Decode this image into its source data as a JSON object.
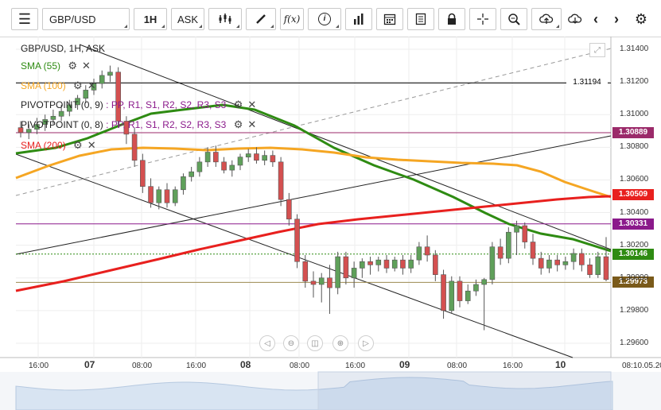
{
  "toolbar": {
    "symbol": "GBP/USD",
    "timeframe": "1H",
    "price_type": "ASK",
    "fx_label": "f(x)"
  },
  "legend": {
    "title": "GBP/USD, 1H, ASK",
    "sma55": "SMA (55)",
    "sma100": "SMA (100)",
    "pivot1_name": "PIVOTPOINT (0, 9)",
    "pivot1_levels": ": PP, R1, S1, R2, S2, R3, S3",
    "pivot2_name": "PIVOTPOINT (0, 8)",
    "pivot2_levels": ": PP, R1, S1, R2, S2, R3, S3",
    "sma200": "SMA (200)"
  },
  "colors": {
    "sma55": "#2e8b12",
    "sma100": "#f5a623",
    "sma200": "#e8201e",
    "pivot": "#8b1a8b",
    "bull": "#5fa05a",
    "bear": "#d45050"
  },
  "price_tags": [
    {
      "label": "1.31194",
      "color": "#000000",
      "price": 1.31194
    },
    {
      "label": "1.30889",
      "color": "#9b2a6a",
      "price": 1.30889
    },
    {
      "label": "1.30509",
      "color": "#e8201e",
      "price": 1.30509
    },
    {
      "label": "1.30331",
      "color": "#8b1a8b",
      "price": 1.30331
    },
    {
      "label": "1.30146",
      "color": "#2e8b12",
      "price": 1.30146
    },
    {
      "label": "1.29973",
      "color": "#7a5a1a",
      "price": 1.29973
    }
  ],
  "chart_data": {
    "type": "candlestick",
    "symbol": "GBP/USD",
    "timeframe": "1H",
    "y_ticks": [
      "1.31400",
      "1.31200",
      "1.31000",
      "1.30800",
      "1.30600",
      "1.30400",
      "1.30200",
      "1.30000",
      "1.29800",
      "1.29600"
    ],
    "ylim": [
      1.295,
      1.315
    ],
    "x_ticks": [
      "16:00",
      "07",
      "08:00",
      "16:00",
      "08",
      "08:00",
      "16:00",
      "09",
      "08:00",
      "16:00",
      "10",
      "08:10.05.2019"
    ],
    "candles": [
      {
        "o": 1.3092,
        "h": 1.3096,
        "l": 1.3086,
        "c": 1.3089
      },
      {
        "o": 1.3089,
        "h": 1.3094,
        "l": 1.3085,
        "c": 1.3091
      },
      {
        "o": 1.3091,
        "h": 1.3098,
        "l": 1.3088,
        "c": 1.3094
      },
      {
        "o": 1.3094,
        "h": 1.31,
        "l": 1.309,
        "c": 1.3097
      },
      {
        "o": 1.3097,
        "h": 1.3103,
        "l": 1.3094,
        "c": 1.3099
      },
      {
        "o": 1.3099,
        "h": 1.3106,
        "l": 1.3096,
        "c": 1.3102
      },
      {
        "o": 1.3102,
        "h": 1.3109,
        "l": 1.3099,
        "c": 1.3106
      },
      {
        "o": 1.3106,
        "h": 1.3112,
        "l": 1.3103,
        "c": 1.311
      },
      {
        "o": 1.311,
        "h": 1.3118,
        "l": 1.3107,
        "c": 1.3115
      },
      {
        "o": 1.3115,
        "h": 1.3122,
        "l": 1.3112,
        "c": 1.3119
      },
      {
        "o": 1.3119,
        "h": 1.3127,
        "l": 1.3116,
        "c": 1.3124
      },
      {
        "o": 1.3124,
        "h": 1.313,
        "l": 1.312,
        "c": 1.3126
      },
      {
        "o": 1.3126,
        "h": 1.3129,
        "l": 1.3092,
        "c": 1.3096
      },
      {
        "o": 1.3096,
        "h": 1.3099,
        "l": 1.3082,
        "c": 1.3088
      },
      {
        "o": 1.3088,
        "h": 1.3092,
        "l": 1.3068,
        "c": 1.3072
      },
      {
        "o": 1.3072,
        "h": 1.3076,
        "l": 1.3052,
        "c": 1.3056
      },
      {
        "o": 1.3056,
        "h": 1.3061,
        "l": 1.3043,
        "c": 1.3046
      },
      {
        "o": 1.3046,
        "h": 1.3056,
        "l": 1.3042,
        "c": 1.3054
      },
      {
        "o": 1.3054,
        "h": 1.3058,
        "l": 1.3043,
        "c": 1.3046
      },
      {
        "o": 1.3046,
        "h": 1.3056,
        "l": 1.3044,
        "c": 1.3054
      },
      {
        "o": 1.3054,
        "h": 1.3064,
        "l": 1.3051,
        "c": 1.3062
      },
      {
        "o": 1.3062,
        "h": 1.3068,
        "l": 1.3059,
        "c": 1.3065
      },
      {
        "o": 1.3065,
        "h": 1.3074,
        "l": 1.3062,
        "c": 1.3071
      },
      {
        "o": 1.3071,
        "h": 1.308,
        "l": 1.3068,
        "c": 1.3077
      },
      {
        "o": 1.3077,
        "h": 1.3081,
        "l": 1.3068,
        "c": 1.3071
      },
      {
        "o": 1.3071,
        "h": 1.3074,
        "l": 1.3064,
        "c": 1.3066
      },
      {
        "o": 1.3066,
        "h": 1.3072,
        "l": 1.3062,
        "c": 1.3069
      },
      {
        "o": 1.3069,
        "h": 1.3076,
        "l": 1.3066,
        "c": 1.3074
      },
      {
        "o": 1.3074,
        "h": 1.3079,
        "l": 1.3071,
        "c": 1.3076
      },
      {
        "o": 1.3076,
        "h": 1.308,
        "l": 1.307,
        "c": 1.3072
      },
      {
        "o": 1.3072,
        "h": 1.3078,
        "l": 1.3069,
        "c": 1.3075
      },
      {
        "o": 1.3075,
        "h": 1.3078,
        "l": 1.3068,
        "c": 1.3071
      },
      {
        "o": 1.3071,
        "h": 1.3074,
        "l": 1.3044,
        "c": 1.3048
      },
      {
        "o": 1.3048,
        "h": 1.3052,
        "l": 1.3032,
        "c": 1.3036
      },
      {
        "o": 1.3036,
        "h": 1.3039,
        "l": 1.3006,
        "c": 1.301
      },
      {
        "o": 1.301,
        "h": 1.3014,
        "l": 1.2994,
        "c": 1.2998
      },
      {
        "o": 1.2998,
        "h": 1.3004,
        "l": 1.2988,
        "c": 1.2996
      },
      {
        "o": 1.2996,
        "h": 1.3003,
        "l": 1.2985,
        "c": 1.3
      },
      {
        "o": 1.3,
        "h": 1.3008,
        "l": 1.2978,
        "c": 1.2994
      },
      {
        "o": 1.2994,
        "h": 1.3016,
        "l": 1.299,
        "c": 1.3013
      },
      {
        "o": 1.3013,
        "h": 1.3016,
        "l": 1.2996,
        "c": 1.3
      },
      {
        "o": 1.3,
        "h": 1.301,
        "l": 1.2994,
        "c": 1.3006
      },
      {
        "o": 1.3006,
        "h": 1.3012,
        "l": 1.3,
        "c": 1.301
      },
      {
        "o": 1.301,
        "h": 1.3013,
        "l": 1.3002,
        "c": 1.3008
      },
      {
        "o": 1.3008,
        "h": 1.3013,
        "l": 1.3004,
        "c": 1.3011
      },
      {
        "o": 1.3011,
        "h": 1.3014,
        "l": 1.3003,
        "c": 1.3006
      },
      {
        "o": 1.3006,
        "h": 1.3013,
        "l": 1.3004,
        "c": 1.3011
      },
      {
        "o": 1.3011,
        "h": 1.3014,
        "l": 1.3002,
        "c": 1.3006
      },
      {
        "o": 1.3006,
        "h": 1.3014,
        "l": 1.3003,
        "c": 1.3011
      },
      {
        "o": 1.3011,
        "h": 1.3022,
        "l": 1.3008,
        "c": 1.3019
      },
      {
        "o": 1.3019,
        "h": 1.3026,
        "l": 1.301,
        "c": 1.3014
      },
      {
        "o": 1.3014,
        "h": 1.3017,
        "l": 1.2998,
        "c": 1.3002
      },
      {
        "o": 1.3002,
        "h": 1.3005,
        "l": 1.2975,
        "c": 1.298
      },
      {
        "o": 1.298,
        "h": 1.3001,
        "l": 1.2978,
        "c": 1.2998
      },
      {
        "o": 1.2998,
        "h": 1.3001,
        "l": 1.2982,
        "c": 1.2986
      },
      {
        "o": 1.2986,
        "h": 1.2996,
        "l": 1.2984,
        "c": 1.2992
      },
      {
        "o": 1.2992,
        "h": 1.2999,
        "l": 1.2989,
        "c": 1.2996
      },
      {
        "o": 1.2996,
        "h": 1.3,
        "l": 1.2968,
        "c": 1.2999
      },
      {
        "o": 1.2999,
        "h": 1.3022,
        "l": 1.2996,
        "c": 1.3019
      },
      {
        "o": 1.3019,
        "h": 1.3024,
        "l": 1.3008,
        "c": 1.3012
      },
      {
        "o": 1.3012,
        "h": 1.3031,
        "l": 1.3009,
        "c": 1.3028
      },
      {
        "o": 1.3028,
        "h": 1.3035,
        "l": 1.3014,
        "c": 1.3032
      },
      {
        "o": 1.3032,
        "h": 1.3034,
        "l": 1.3018,
        "c": 1.3022
      },
      {
        "o": 1.3022,
        "h": 1.3027,
        "l": 1.3008,
        "c": 1.3012
      },
      {
        "o": 1.3012,
        "h": 1.3016,
        "l": 1.3002,
        "c": 1.3006
      },
      {
        "o": 1.3006,
        "h": 1.3014,
        "l": 1.3003,
        "c": 1.3011
      },
      {
        "o": 1.3011,
        "h": 1.3014,
        "l": 1.3004,
        "c": 1.3008
      },
      {
        "o": 1.3008,
        "h": 1.3013,
        "l": 1.3005,
        "c": 1.301
      },
      {
        "o": 1.301,
        "h": 1.3018,
        "l": 1.3005,
        "c": 1.3015
      },
      {
        "o": 1.3015,
        "h": 1.3018,
        "l": 1.3004,
        "c": 1.3008
      },
      {
        "o": 1.3008,
        "h": 1.3012,
        "l": 1.3,
        "c": 1.3002
      },
      {
        "o": 1.3002,
        "h": 1.3016,
        "l": 1.3,
        "c": 1.3013
      },
      {
        "o": 1.3013,
        "h": 1.3025,
        "l": 1.2998,
        "c": 1.2999
      }
    ]
  }
}
